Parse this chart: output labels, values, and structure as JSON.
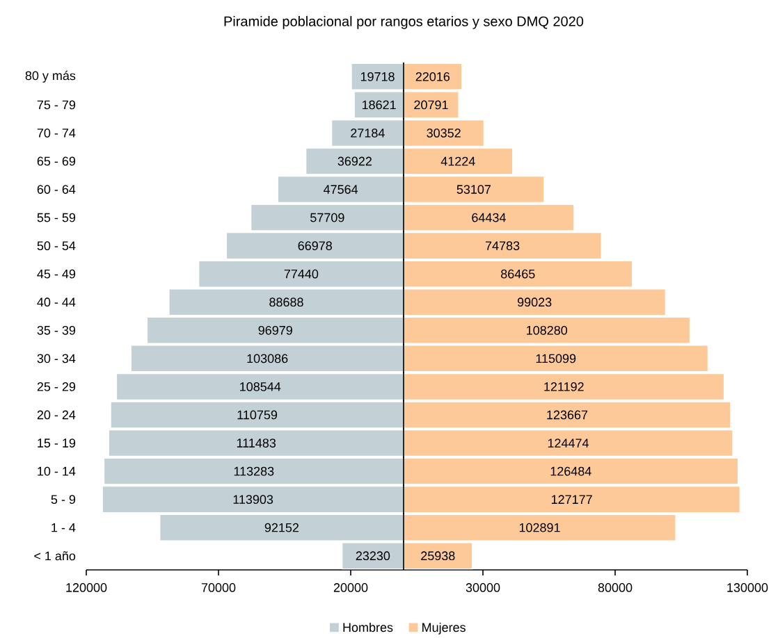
{
  "chart_data": [
    {
      "type": "bar",
      "orientation": "horizontal",
      "title": "Piramide poblacional por rangos etarios y sexo DMQ 2020",
      "categories": [
        "80 y más",
        "75 - 79",
        "70 - 74",
        "65 - 69",
        "60 - 64",
        "55 - 59",
        "50 - 54",
        "45 - 49",
        "40 - 44",
        "35 - 39",
        "30 - 34",
        "25 - 29",
        "20 - 24",
        "15 - 19",
        "10 - 14",
        "5  -  9",
        "1  -  4",
        "< 1 año"
      ],
      "series": [
        {
          "name": "Hombres",
          "color": "#c3d1d6",
          "values": [
            19718,
            18621,
            27184,
            36922,
            47564,
            57709,
            66978,
            77440,
            88688,
            96979,
            103086,
            108544,
            110759,
            111483,
            113283,
            113903,
            92152,
            23230
          ]
        }
      ],
      "xlim": [
        120000,
        0
      ],
      "xticks": [
        120000,
        70000,
        20000
      ],
      "data_labels": true,
      "legend": "bottom"
    },
    {
      "type": "bar",
      "orientation": "horizontal",
      "categories": [
        null,
        null,
        null,
        null,
        null,
        null,
        null,
        null,
        null,
        null,
        null,
        null,
        null,
        null,
        null,
        null,
        null,
        null
      ],
      "series": [
        {
          "name": "Mujeres",
          "color": "#fdc999",
          "values": [
            22016,
            20791,
            30352,
            41224,
            53107,
            64434,
            74783,
            86465,
            99023,
            108280,
            115099,
            121192,
            123667,
            124474,
            126484,
            127177,
            102891,
            25938
          ]
        }
      ],
      "xlim": [
        0,
        130000
      ],
      "xticks": [
        30000,
        80000,
        130000
      ],
      "data_labels": true,
      "legend": "bottom",
      "tick_labels": "x"
    }
  ]
}
